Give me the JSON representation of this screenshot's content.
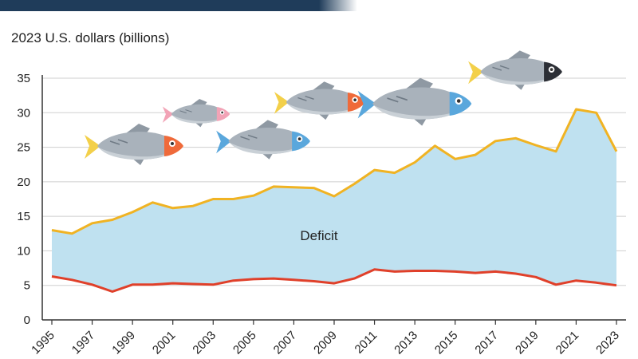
{
  "chart_data": {
    "type": "area",
    "ylabel": "2023 U.S. dollars (billions)",
    "ylim": [
      0,
      35
    ],
    "yticks": [
      0,
      5,
      10,
      15,
      20,
      25,
      30,
      35
    ],
    "xlim": [
      1995,
      2023
    ],
    "xticks": [
      1995,
      1997,
      1999,
      2001,
      2003,
      2005,
      2007,
      2009,
      2011,
      2013,
      2015,
      2017,
      2019,
      2021,
      2023
    ],
    "x": [
      1995,
      1996,
      1997,
      1998,
      1999,
      2000,
      2001,
      2002,
      2003,
      2004,
      2005,
      2006,
      2007,
      2008,
      2009,
      2010,
      2011,
      2012,
      2013,
      2014,
      2015,
      2016,
      2017,
      2018,
      2019,
      2020,
      2021,
      2022,
      2023
    ],
    "series": [
      {
        "color": "#f0b323",
        "values": [
          13.0,
          12.5,
          14.0,
          14.5,
          15.6,
          17.0,
          16.2,
          16.5,
          17.5,
          17.5,
          18.0,
          19.3,
          19.2,
          19.1,
          17.9,
          19.7,
          21.7,
          21.3,
          22.8,
          25.2,
          23.3,
          23.9,
          25.9,
          26.3,
          25.3,
          24.4,
          30.5,
          30.0,
          24.4
        ]
      },
      {
        "color": "#e0402a",
        "values": [
          6.3,
          5.8,
          5.1,
          4.1,
          5.1,
          5.1,
          5.3,
          5.2,
          5.1,
          5.7,
          5.9,
          6.0,
          5.8,
          5.6,
          5.3,
          6.0,
          7.3,
          7.0,
          7.1,
          7.1,
          7.0,
          6.8,
          7.0,
          6.7,
          6.2,
          5.1,
          5.7,
          5.4,
          5.0
        ]
      }
    ],
    "fill_between_color": "#bfe1f0",
    "annotation": "Deficit",
    "grid": "horizontal",
    "decorations": [
      "fish-orange-head-icon",
      "fish-pink-small-icon",
      "fish-blue-head-icon",
      "fish-orange-head-icon-2",
      "fish-blue-head-large-icon",
      "fish-black-head-icon"
    ]
  },
  "colors": {
    "top_band": "#1f3c5a",
    "axis": "#333333",
    "grid": "#cfcfcf"
  }
}
